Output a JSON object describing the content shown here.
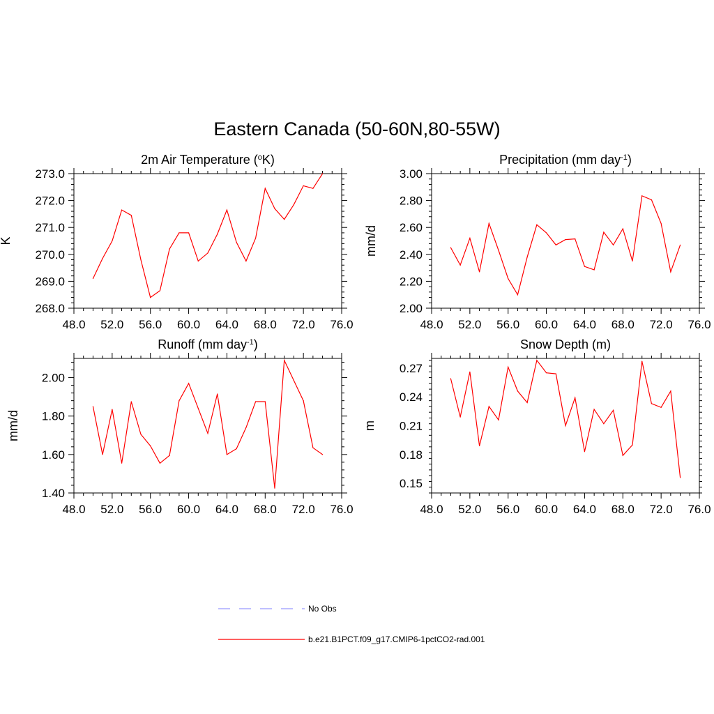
{
  "title": "Eastern Canada (50-60N,80-55W)",
  "colors": {
    "model_line": "#ff0000",
    "obs_line": "#9999ff",
    "axis": "#000000"
  },
  "legend": {
    "items": [
      {
        "label": "No Obs",
        "style": "dashed",
        "color": "#9999ff"
      },
      {
        "label": "b.e21.B1PCT.f09_g17.CMIP6-1pctCO2-rad.001",
        "style": "solid",
        "color": "#ff0000"
      }
    ]
  },
  "chart_data": [
    {
      "type": "line",
      "title": "2m Air Temperature (oK)",
      "title_parts": {
        "pre": "2m Air Temperature (",
        "sup": "o",
        "post": "K)"
      },
      "ylabel": "K",
      "xlim": [
        48,
        76
      ],
      "ylim": [
        268,
        273
      ],
      "xticks": [
        "48.0",
        "52.0",
        "56.0",
        "60.0",
        "64.0",
        "68.0",
        "72.0",
        "76.0"
      ],
      "yticks": [
        {
          "v": 268,
          "label": "268.0"
        },
        {
          "v": 269,
          "label": "269.0"
        },
        {
          "v": 270,
          "label": "270.0"
        },
        {
          "v": 271,
          "label": "271.0"
        },
        {
          "v": 272,
          "label": "272.0"
        },
        {
          "v": 273,
          "label": "273.0"
        }
      ],
      "series": [
        {
          "x": [
            50,
            51,
            52,
            53,
            54,
            55,
            56,
            57,
            58,
            59,
            60,
            61,
            62,
            63,
            64,
            65,
            66,
            67,
            68,
            69,
            70,
            71,
            72,
            73,
            74
          ],
          "values": [
            269.1,
            269.85,
            270.5,
            271.65,
            271.45,
            269.8,
            268.4,
            268.65,
            270.2,
            270.8,
            270.8,
            269.75,
            270.05,
            270.75,
            271.65,
            270.45,
            269.75,
            270.6,
            272.45,
            271.7,
            271.3,
            271.85,
            272.55,
            272.45,
            273.0
          ]
        }
      ]
    },
    {
      "type": "line",
      "title": "Precipitation (mm day-1)",
      "title_parts": {
        "pre": "Precipitation (mm day",
        "sup": "-1",
        "post": ")"
      },
      "ylabel": "mm/d",
      "xlim": [
        48,
        76
      ],
      "ylim": [
        2.0,
        3.0
      ],
      "xticks": [
        "48.0",
        "52.0",
        "56.0",
        "60.0",
        "64.0",
        "68.0",
        "72.0",
        "76.0"
      ],
      "yticks": [
        {
          "v": 2.0,
          "label": "2.00"
        },
        {
          "v": 2.2,
          "label": "2.20"
        },
        {
          "v": 2.4,
          "label": "2.40"
        },
        {
          "v": 2.6,
          "label": "2.60"
        },
        {
          "v": 2.8,
          "label": "2.80"
        },
        {
          "v": 3.0,
          "label": "3.00"
        }
      ],
      "series": [
        {
          "x": [
            50,
            51,
            52,
            53,
            54,
            55,
            56,
            57,
            58,
            59,
            60,
            61,
            62,
            63,
            64,
            65,
            66,
            67,
            68,
            69,
            70,
            71,
            72,
            73,
            74
          ],
          "values": [
            2.45,
            2.32,
            2.52,
            2.27,
            2.63,
            2.43,
            2.22,
            2.1,
            2.38,
            2.62,
            2.56,
            2.47,
            2.51,
            2.515,
            2.31,
            2.285,
            2.565,
            2.47,
            2.59,
            2.35,
            2.835,
            2.805,
            2.63,
            2.27,
            2.47
          ]
        }
      ]
    },
    {
      "type": "line",
      "title": "Runoff (mm day-1)",
      "title_parts": {
        "pre": "Runoff (mm day",
        "sup": "-1",
        "post": ")"
      },
      "ylabel": "mm/d",
      "xlim": [
        48,
        76
      ],
      "ylim": [
        1.4,
        2.1
      ],
      "xticks": [
        "48.0",
        "52.0",
        "56.0",
        "60.0",
        "64.0",
        "68.0",
        "72.0",
        "76.0"
      ],
      "yticks": [
        {
          "v": 1.4,
          "label": "1.40"
        },
        {
          "v": 1.6,
          "label": "1.60"
        },
        {
          "v": 1.8,
          "label": "1.80"
        },
        {
          "v": 2.0,
          "label": "2.00"
        }
      ],
      "series": [
        {
          "x": [
            50,
            51,
            52,
            53,
            54,
            55,
            56,
            57,
            58,
            59,
            60,
            61,
            62,
            63,
            64,
            65,
            66,
            67,
            68,
            69,
            70,
            71,
            72,
            73,
            74
          ],
          "values": [
            1.85,
            1.6,
            1.835,
            1.555,
            1.875,
            1.705,
            1.645,
            1.555,
            1.595,
            1.88,
            1.97,
            1.84,
            1.71,
            1.915,
            1.6,
            1.63,
            1.74,
            1.875,
            1.875,
            1.425,
            2.09,
            1.985,
            1.88,
            1.635,
            1.6
          ]
        }
      ]
    },
    {
      "type": "line",
      "title": "Snow Depth (m)",
      "title_parts": {
        "pre": "Snow Depth (m)",
        "sup": "",
        "post": ""
      },
      "ylabel": "m",
      "xlim": [
        48,
        76
      ],
      "ylim": [
        0.14,
        0.28
      ],
      "xticks": [
        "48.0",
        "52.0",
        "56.0",
        "60.0",
        "64.0",
        "68.0",
        "72.0",
        "76.0"
      ],
      "yticks": [
        {
          "v": 0.15,
          "label": "0.15"
        },
        {
          "v": 0.18,
          "label": "0.18"
        },
        {
          "v": 0.21,
          "label": "0.21"
        },
        {
          "v": 0.24,
          "label": "0.24"
        },
        {
          "v": 0.27,
          "label": "0.27"
        }
      ],
      "series": [
        {
          "x": [
            50,
            51,
            52,
            53,
            54,
            55,
            56,
            57,
            58,
            59,
            60,
            61,
            62,
            63,
            64,
            65,
            66,
            67,
            68,
            69,
            70,
            71,
            72,
            73,
            74
          ],
          "values": [
            0.259,
            0.219,
            0.266,
            0.189,
            0.23,
            0.216,
            0.271,
            0.246,
            0.234,
            0.278,
            0.265,
            0.264,
            0.21,
            0.239,
            0.183,
            0.227,
            0.212,
            0.226,
            0.179,
            0.19,
            0.277,
            0.233,
            0.229,
            0.246,
            0.156
          ]
        }
      ]
    }
  ]
}
